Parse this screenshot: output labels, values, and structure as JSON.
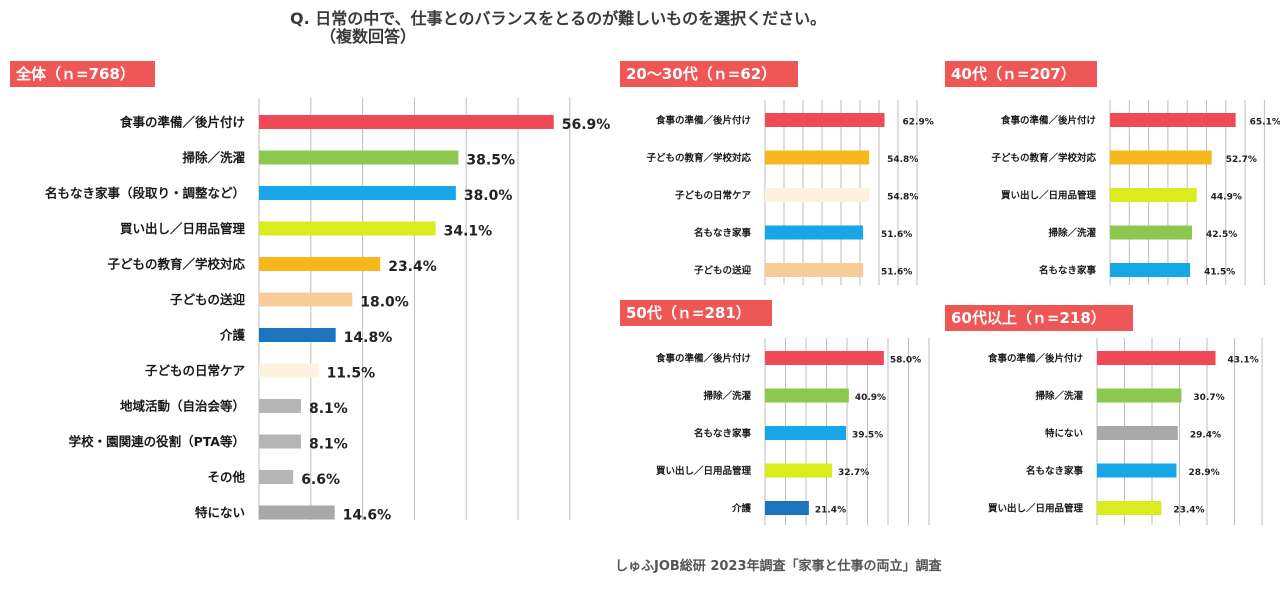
{
  "header": {
    "question_line1": "Q. 日常の中で、仕事とのバランスをとるのが難しいものを選択ください。",
    "question_line2": "（複数回答）"
  },
  "footer": {
    "source": "しゅふJOB総研 2023年調査「家事と仕事の両立」調査"
  },
  "colors": {
    "title_bg": "#ef5757",
    "食事の準備／後片付け": "#ef4a55",
    "掃除／洗濯": "#8cc74f",
    "名もなき家事": "#17a7e6",
    "買い出し／日用品管理": "#d8ec1e",
    "子どもの教育／学校対応": "#f7b81e",
    "子どもの送迎": "#f8cc97",
    "介護": "#1b74bc",
    "子どもの日常ケア": "#fdf1e0",
    "gray": "#a8a8a8"
  },
  "chart_data": [
    {
      "type": "bar",
      "title": "全体（ｎ=768）",
      "categories": [
        "食事の準備／後片付け",
        "掃除／洗濯",
        "名もなき家事（段取り・調整など）",
        "買い出し／日用品管理",
        "子どもの教育／学校対応",
        "子どもの送迎",
        "介護",
        "子どもの日常ケア",
        "地域活動（自治会等）",
        "学校・園関連の役割（PTA等）",
        "その他",
        "特にない"
      ],
      "values": [
        56.9,
        38.5,
        38.0,
        34.1,
        23.4,
        18.0,
        14.8,
        11.5,
        8.1,
        8.1,
        6.6,
        14.6
      ],
      "value_labels": [
        "56.9%",
        "38.5%",
        "38.0%",
        "34.1%",
        "23.4%",
        "18.0%",
        "14.8%",
        "11.5%",
        "8.1%",
        "8.1%",
        "6.6%",
        "14.6%"
      ],
      "colors": [
        "#ef4a55",
        "#8cc74f",
        "#17a7e6",
        "#d8ec1e",
        "#f7b81e",
        "#f8cc97",
        "#1b74bc",
        "#fdf1e0",
        "#b5b5b5",
        "#b5b5b5",
        "#b5b5b5",
        "#a8a8a8"
      ],
      "xlim": [
        0,
        60
      ],
      "grid": true
    },
    {
      "type": "bar",
      "title": "20～30代（ｎ=62）",
      "categories": [
        "食事の準備／後片付け",
        "子どもの教育／学校対応",
        "子どもの日常ケア",
        "名もなき家事",
        "子どもの送迎"
      ],
      "values": [
        62.9,
        54.8,
        54.8,
        51.6,
        51.6
      ],
      "value_labels": [
        "62.9%",
        "54.8%",
        "54.8%",
        "51.6%",
        "51.6%"
      ],
      "colors": [
        "#ef4a55",
        "#f7b81e",
        "#fdf1e0",
        "#17a7e6",
        "#f8cc97"
      ],
      "xlim": [
        0,
        80
      ],
      "grid": true
    },
    {
      "type": "bar",
      "title": "40代（ｎ=207）",
      "categories": [
        "食事の準備／後片付け",
        "子どもの教育／学校対応",
        "買い出し／日用品管理",
        "掃除／洗濯",
        "名もなき家事"
      ],
      "values": [
        65.1,
        52.7,
        44.9,
        42.5,
        41.5
      ],
      "value_labels": [
        "65.1%",
        "52.7%",
        "44.9%",
        "42.5%",
        "41.5%"
      ],
      "colors": [
        "#ef4a55",
        "#f7b81e",
        "#d8ec1e",
        "#8cc74f",
        "#17a7e6"
      ],
      "xlim": [
        0,
        80
      ],
      "grid": true
    },
    {
      "type": "bar",
      "title": "50代（ｎ=281）",
      "categories": [
        "食事の準備／後片付け",
        "掃除／洗濯",
        "名もなき家事",
        "買い出し／日用品管理",
        "介護"
      ],
      "values": [
        58.0,
        40.9,
        39.5,
        32.7,
        21.4
      ],
      "value_labels": [
        "58.0%",
        "40.9%",
        "39.5%",
        "32.7%",
        "21.4%"
      ],
      "colors": [
        "#ef4a55",
        "#8cc74f",
        "#17a7e6",
        "#d8ec1e",
        "#1b74bc"
      ],
      "xlim": [
        0,
        80
      ],
      "grid": true
    },
    {
      "type": "bar",
      "title": "60代以上（ｎ=218）",
      "categories": [
        "食事の準備／後片付け",
        "掃除／洗濯",
        "特にない",
        "名もなき家事",
        "買い出し／日用品管理"
      ],
      "values": [
        43.1,
        30.7,
        29.4,
        28.9,
        23.4
      ],
      "value_labels": [
        "43.1%",
        "30.7%",
        "29.4%",
        "28.9%",
        "23.4%"
      ],
      "colors": [
        "#ef4a55",
        "#8cc74f",
        "#a8a8a8",
        "#17a7e6",
        "#d8ec1e"
      ],
      "xlim": [
        0,
        60
      ],
      "grid": true
    }
  ]
}
